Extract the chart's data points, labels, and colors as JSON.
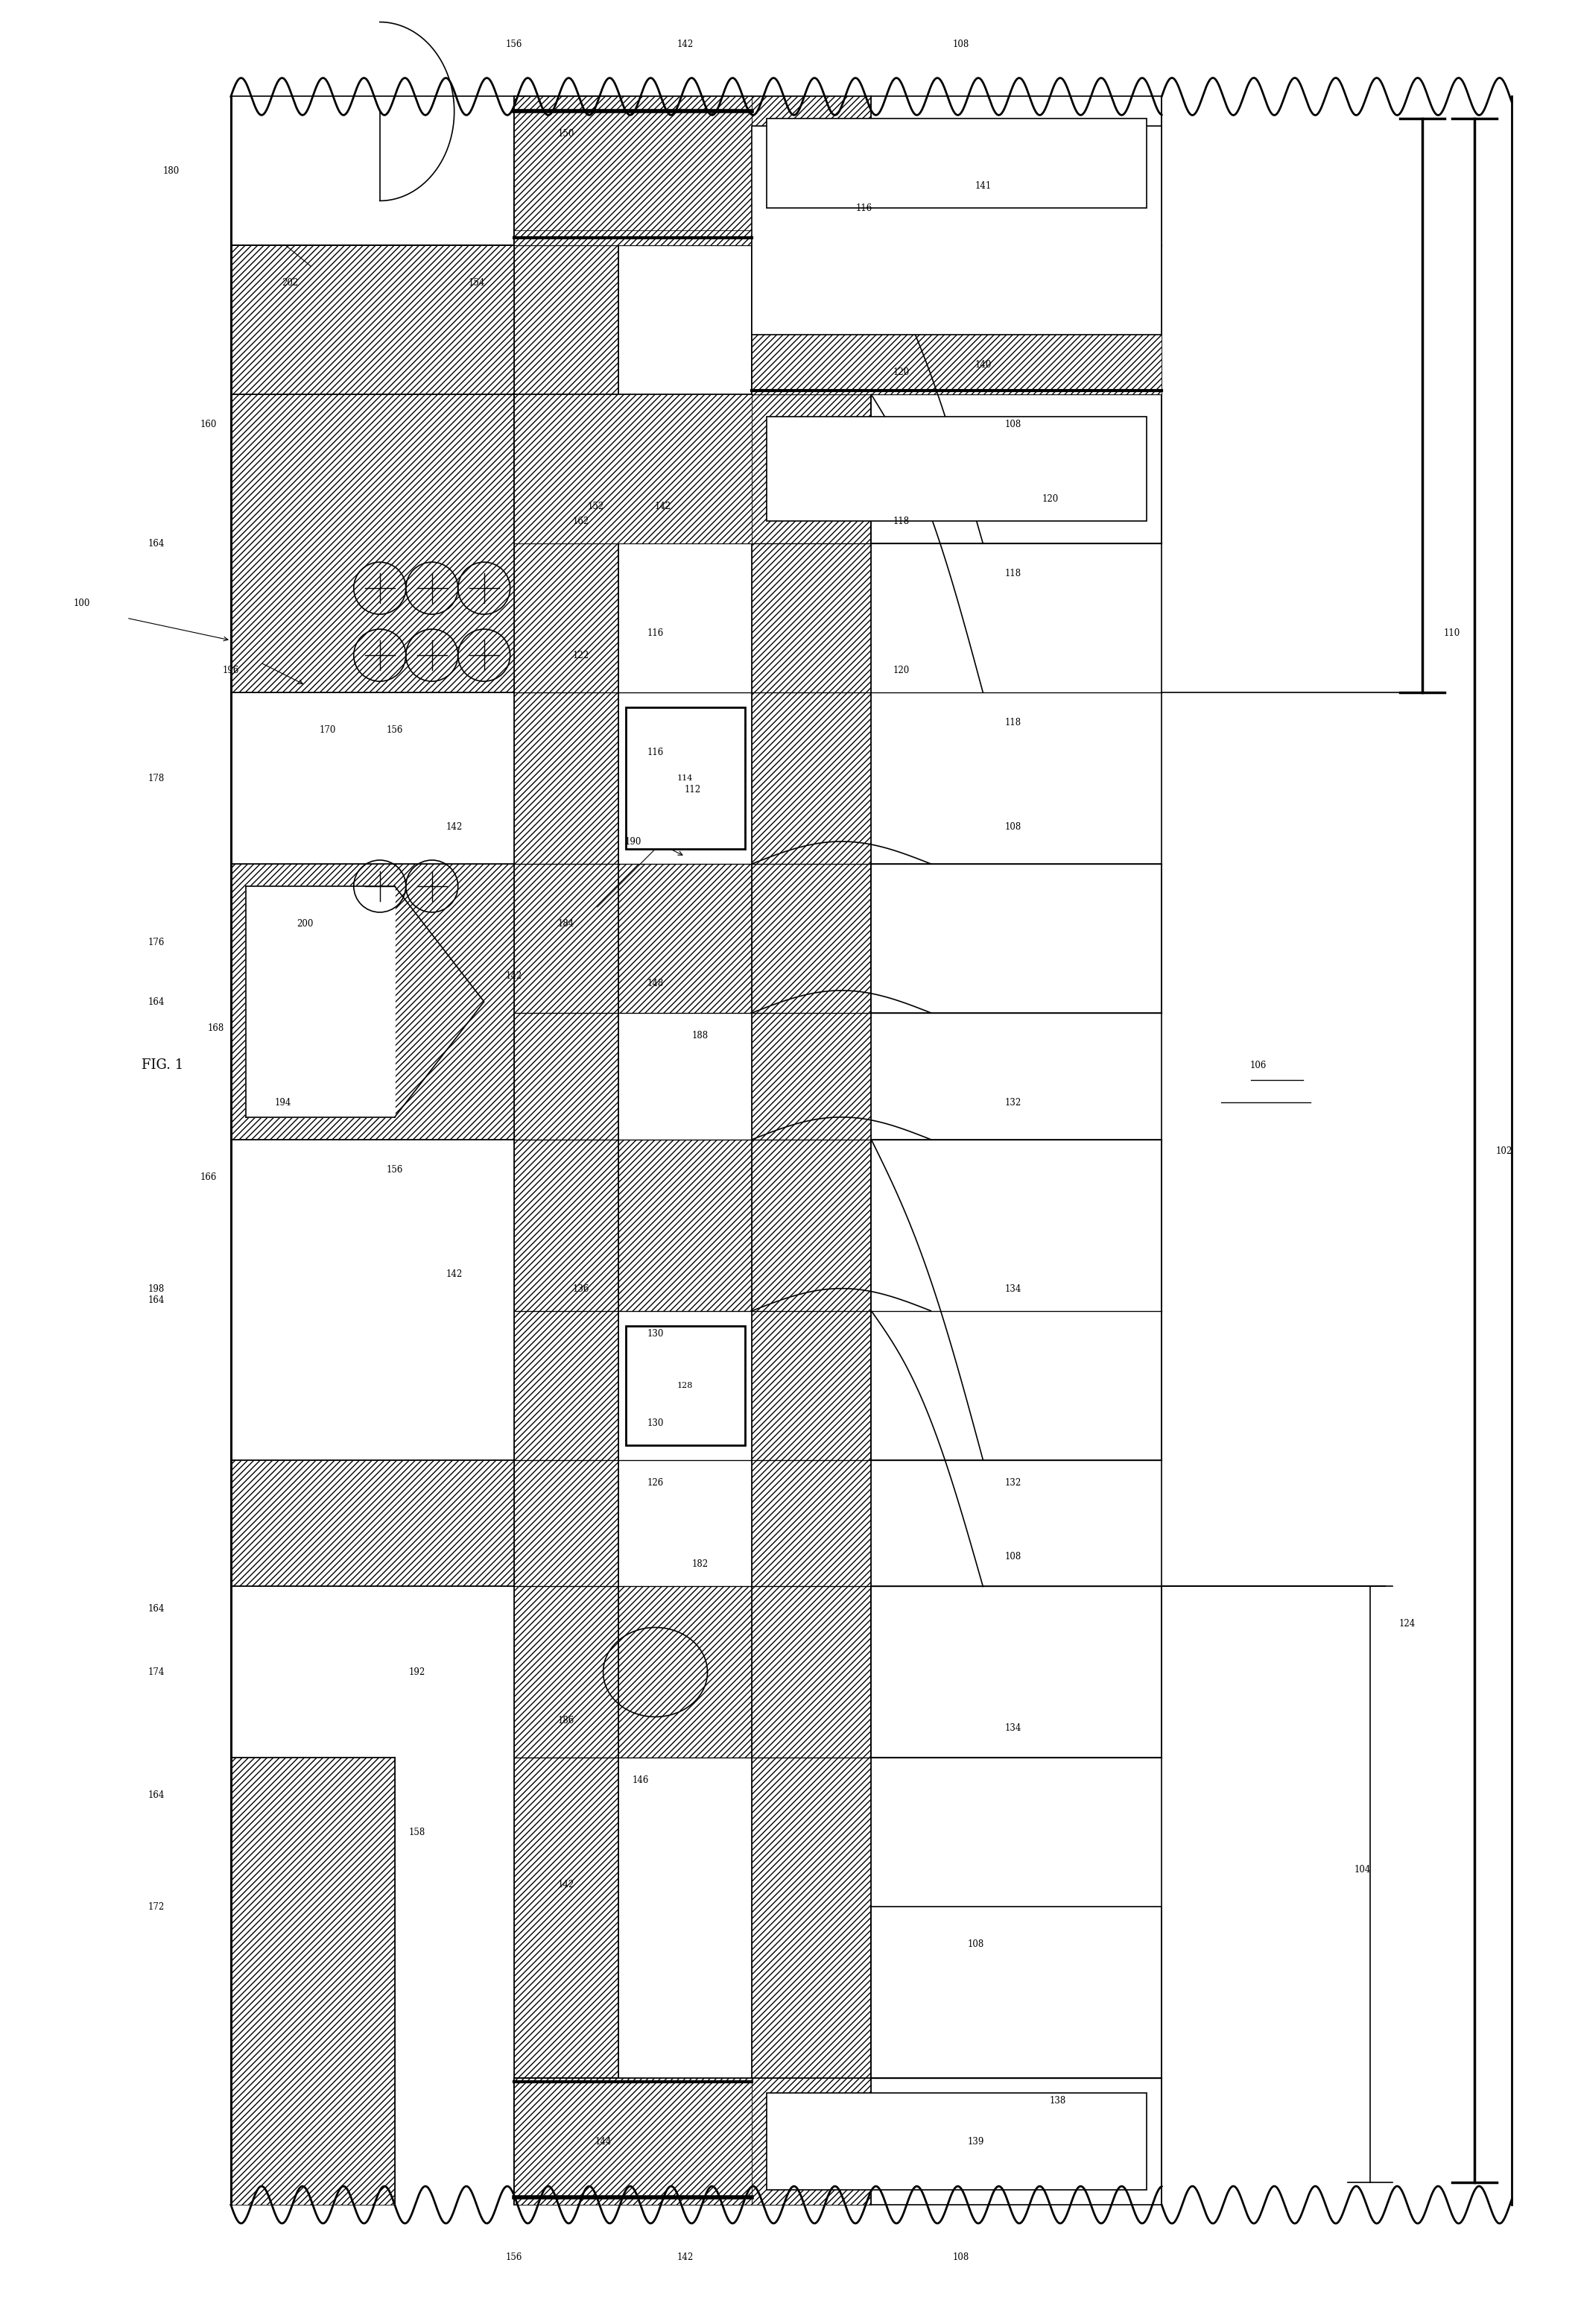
{
  "title": "FIG. 1",
  "bg_color": "#ffffff",
  "fig_width": 21.09,
  "fig_height": 31.04,
  "labels": {
    "top_numbers": [
      "156",
      "142",
      "108"
    ],
    "bottom_numbers": [
      "156",
      "142",
      "108"
    ],
    "right_brackets": [
      "110",
      "102",
      "104",
      "124"
    ],
    "fig_label": "FIG. 1",
    "device_label": "100"
  }
}
